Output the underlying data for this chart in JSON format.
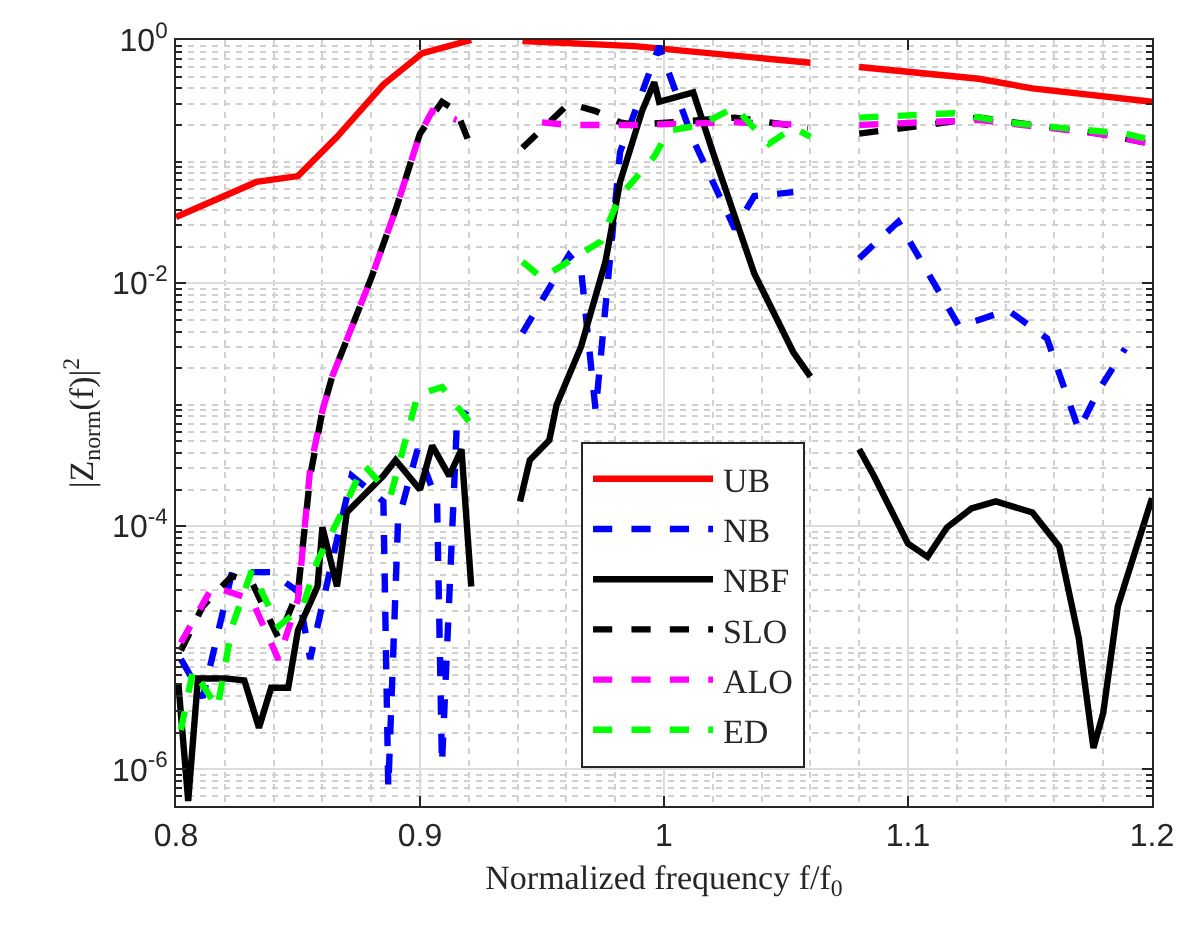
{
  "chart_data": {
    "type": "line",
    "xlabel": "Normalized frequency f/f$_{0}$",
    "ylabel": "|Z$_{norm}$(f)|$^{2}$",
    "log": "y",
    "grid": true,
    "legend": "bottom",
    "xlim": [
      0.8,
      1.2
    ],
    "xticks": [
      0.8,
      0.9,
      1,
      1.1,
      1.2
    ],
    "ylim": [
      5e-07,
      1
    ],
    "yticks": [
      {
        "value": 1e-06,
        "label": "10$^{-6}$"
      },
      {
        "value": 0.0001,
        "label": "10$^{-4}$"
      },
      {
        "value": 0.01,
        "label": "10$^{-2}$"
      },
      {
        "value": 1,
        "label": "10$^{0}$"
      }
    ],
    "series": [
      {
        "name": "UB",
        "color": "#ff0000",
        "line_style": "solid",
        "x": [
          0.8,
          0.833,
          0.85,
          0.866,
          0.885,
          0.901,
          0.921,
          0.93,
          0.942,
          0.988,
          1.06,
          1.07,
          1.08,
          1.129,
          1.151,
          1.2
        ],
        "values": [
          0.035,
          0.068,
          0.076,
          0.16,
          0.43,
          0.78,
          1.0,
          null,
          0.98,
          0.89,
          0.65,
          null,
          0.6,
          0.48,
          0.4,
          0.31
        ]
      },
      {
        "name": "NB",
        "color": "#0000ff",
        "line_style": "dashed",
        "x": [
          0.802,
          0.811,
          0.823,
          0.839,
          0.85,
          0.855,
          0.864,
          0.872,
          0.885,
          0.887,
          0.891,
          0.899,
          0.907,
          0.909,
          0.915,
          0.919,
          0.93,
          0.942,
          0.961,
          0.966,
          0.972,
          0.982,
          0.998,
          1.012,
          1.029,
          1.037,
          1.053,
          1.07,
          1.08,
          1.096,
          1.121,
          1.141,
          1.157,
          1.17,
          1.178,
          1.189
        ],
        "values": [
          8.1e-06,
          3.9e-06,
          4.2e-05,
          4.2e-05,
          2.9e-05,
          8.1e-06,
          5.2e-05,
          0.00026,
          0.00016,
          7e-07,
          0.00011,
          0.00043,
          0.00016,
          1.1e-06,
          0.00062,
          0.00089,
          null,
          0.0039,
          0.017,
          0.013,
          0.00089,
          0.12,
          0.89,
          0.15,
          0.028,
          0.052,
          0.056,
          null,
          0.016,
          0.032,
          0.0044,
          0.006,
          0.0035,
          0.00062,
          0.0013,
          0.0029
        ]
      },
      {
        "name": "NBF",
        "color": "#000000",
        "line_style": "solid",
        "x": [
          0.801,
          0.805,
          0.809,
          0.82,
          0.828,
          0.834,
          0.839,
          0.846,
          0.85,
          0.858,
          0.86,
          0.866,
          0.87,
          0.877,
          0.885,
          0.89,
          0.9,
          0.905,
          0.912,
          0.917,
          0.921,
          0.93,
          0.941,
          0.945,
          0.953,
          0.956,
          0.966,
          0.976,
          0.982,
          0.991,
          0.996,
          0.998,
          1.012,
          1.02,
          1.037,
          1.053,
          1.06,
          1.07,
          1.08,
          1.086,
          1.1,
          1.108,
          1.116,
          1.126,
          1.136,
          1.151,
          1.162,
          1.17,
          1.176,
          1.18,
          1.186,
          1.2
        ],
        "values": [
          5e-06,
          5.5e-07,
          5.6e-06,
          5.6e-06,
          5.4e-06,
          2.2e-06,
          4.7e-06,
          4.7e-06,
          1.4e-05,
          3.2e-05,
          9.8e-05,
          3.2e-05,
          0.00013,
          0.00018,
          0.00026,
          0.00035,
          0.0002,
          0.00046,
          0.00026,
          0.00043,
          3.2e-05,
          null,
          0.00016,
          0.00035,
          0.00051,
          0.001,
          0.003,
          0.015,
          0.068,
          0.26,
          0.45,
          0.31,
          0.37,
          0.12,
          0.012,
          0.0027,
          0.0017,
          null,
          0.00043,
          0.00026,
          7.2e-05,
          5.6e-05,
          9.8e-05,
          0.00014,
          0.00016,
          0.00013,
          6.8e-05,
          1.2e-05,
          1.5e-06,
          2.9e-06,
          2.2e-05,
          0.00017
        ]
      },
      {
        "name": "SLO",
        "color": "#000000",
        "line_style": "dashed",
        "x": [
          0.802,
          0.811,
          0.823,
          0.831,
          0.842,
          0.85,
          0.855,
          0.86,
          0.864,
          0.88,
          0.89,
          0.9,
          0.909,
          0.915,
          0.921,
          0.93,
          0.942,
          0.961,
          0.972,
          0.982,
          0.988,
          1.029,
          1.059,
          1.07,
          1.08,
          1.108,
          1.129,
          1.151,
          1.178,
          1.2
        ],
        "values": [
          9.5e-06,
          2.2e-05,
          3.9e-05,
          3.5e-05,
          1.2e-05,
          2.9e-05,
          0.00026,
          0.00089,
          0.0017,
          0.011,
          0.04,
          0.17,
          0.31,
          0.26,
          0.13,
          null,
          0.13,
          0.3,
          0.26,
          0.21,
          0.2,
          0.23,
          0.19,
          null,
          0.17,
          0.2,
          0.23,
          0.2,
          0.17,
          0.14
        ]
      },
      {
        "name": "ALO",
        "color": "#ff00ff",
        "line_style": "dashed",
        "x": [
          0.802,
          0.815,
          0.831,
          0.842,
          0.85,
          0.855,
          0.86,
          0.864,
          0.88,
          0.89,
          0.9,
          0.905,
          0.915,
          0.93,
          0.95,
          0.961,
          0.988,
          1.029,
          1.059,
          1.07,
          1.08,
          1.129,
          1.178,
          1.2
        ],
        "values": [
          1.1e-05,
          3.2e-05,
          2.5e-05,
          8e-06,
          2.5e-05,
          0.0003,
          0.00089,
          0.0017,
          0.011,
          0.04,
          0.17,
          0.26,
          0.22,
          null,
          0.21,
          0.2,
          0.2,
          0.21,
          0.2,
          null,
          0.2,
          0.22,
          0.17,
          0.14
        ]
      },
      {
        "name": "ED",
        "color": "#00ff00",
        "line_style": "dashed",
        "x": [
          0.802,
          0.807,
          0.817,
          0.823,
          0.831,
          0.842,
          0.852,
          0.858,
          0.868,
          0.877,
          0.888,
          0.899,
          0.909,
          0.921,
          0.93,
          0.942,
          0.95,
          0.974,
          0.982,
          0.996,
          1.002,
          1.015,
          1.029,
          1.043,
          1.053,
          1.06,
          1.07,
          1.08,
          1.119,
          1.141,
          1.162,
          1.189,
          1.2
        ],
        "values": [
          2.1e-06,
          6.6e-06,
          3.2e-06,
          1.5e-05,
          4.3e-05,
          1.5e-05,
          2.2e-05,
          5.2e-05,
          0.00013,
          0.00032,
          0.00018,
          0.0012,
          0.0014,
          0.00069,
          null,
          0.015,
          0.011,
          0.022,
          0.052,
          0.11,
          0.18,
          0.2,
          0.28,
          0.14,
          0.19,
          0.16,
          null,
          0.23,
          0.25,
          0.21,
          0.19,
          0.17,
          0.15
        ]
      }
    ]
  }
}
